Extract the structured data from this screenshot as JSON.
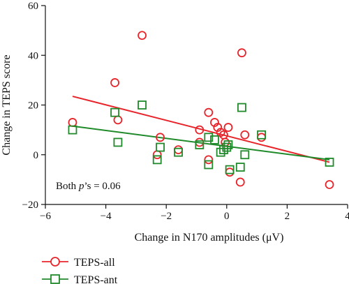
{
  "chart_data": {
    "type": "scatter",
    "xlabel": "Change in N170 amplitudes (μV)",
    "ylabel": "Change in TEPS score",
    "xlim": [
      -6,
      4
    ],
    "ylim": [
      -20,
      60
    ],
    "x_ticks": [
      -6,
      -4,
      -2,
      0,
      2,
      4
    ],
    "y_ticks": [
      -20,
      0,
      20,
      40,
      60
    ],
    "x_tick_labels": [
      "−6",
      "−4",
      "−2",
      "0",
      "2",
      "4"
    ],
    "y_tick_labels": [
      "−20",
      "0",
      "20",
      "40",
      "60"
    ],
    "grid": false,
    "annotation": {
      "prefix": "Both ",
      "italic": "p",
      "suffix": "’s = 0.06"
    },
    "legend_position": "below the plot, left",
    "series": [
      {
        "name": "TEPS-all",
        "marker": "circle",
        "color": "#e8242b",
        "points": [
          [
            -5.1,
            13
          ],
          [
            -3.7,
            29
          ],
          [
            -3.6,
            14
          ],
          [
            -2.8,
            48
          ],
          [
            -2.3,
            0
          ],
          [
            -2.2,
            7
          ],
          [
            -1.6,
            2
          ],
          [
            -0.9,
            10
          ],
          [
            -0.9,
            5
          ],
          [
            -0.6,
            17
          ],
          [
            -0.6,
            -2
          ],
          [
            -0.4,
            13
          ],
          [
            -0.3,
            11
          ],
          [
            -0.2,
            9
          ],
          [
            -0.1,
            8
          ],
          [
            -0.05,
            5
          ],
          [
            0.05,
            11
          ],
          [
            0.1,
            -7
          ],
          [
            0.45,
            -11
          ],
          [
            0.5,
            41
          ],
          [
            0.6,
            8
          ],
          [
            1.15,
            7
          ],
          [
            3.4,
            -12
          ]
        ],
        "fit": {
          "x": [
            -5.1,
            3.4
          ],
          "y": [
            23.5,
            -3
          ]
        }
      },
      {
        "name": "TEPS-ant",
        "marker": "square",
        "color": "#1f8a2a",
        "points": [
          [
            -5.1,
            10
          ],
          [
            -3.7,
            17
          ],
          [
            -3.6,
            5
          ],
          [
            -2.8,
            20
          ],
          [
            -2.3,
            -2
          ],
          [
            -2.2,
            3
          ],
          [
            -1.6,
            1
          ],
          [
            -0.9,
            4
          ],
          [
            -0.6,
            7
          ],
          [
            -0.6,
            -4
          ],
          [
            -0.4,
            6
          ],
          [
            -0.2,
            1
          ],
          [
            -0.1,
            2
          ],
          [
            0.0,
            3
          ],
          [
            0.05,
            4
          ],
          [
            0.1,
            -6
          ],
          [
            0.45,
            -5
          ],
          [
            0.5,
            19
          ],
          [
            0.6,
            0
          ],
          [
            1.15,
            8
          ],
          [
            3.4,
            -3
          ]
        ],
        "fit": {
          "x": [
            -5.1,
            3.4
          ],
          "y": [
            11.5,
            -2
          ]
        }
      }
    ]
  }
}
